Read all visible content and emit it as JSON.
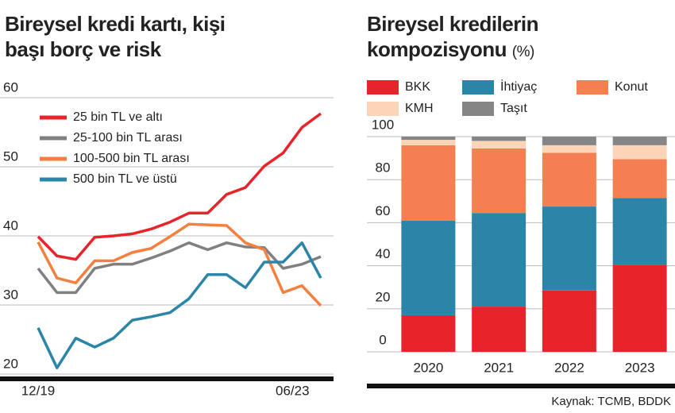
{
  "chart_data": [
    {
      "type": "line",
      "title": "Bireysel kredi kartı, kişi başı borç ve risk",
      "categories": [
        "12/19",
        null,
        null,
        null,
        null,
        null,
        null,
        null,
        null,
        null,
        null,
        null,
        null,
        null,
        "06/23",
        null
      ],
      "ylim": [
        20,
        60
      ],
      "yticks": [
        20,
        30,
        40,
        50,
        60
      ],
      "grid": true,
      "legend": "upper left",
      "series": [
        {
          "name": "25 bin TL ve altı",
          "color": "#e8242a",
          "values": [
            39.9,
            37.1,
            36.6,
            39.8,
            40,
            40.3,
            41,
            42,
            43.3,
            43.3,
            46,
            47,
            50.1,
            52,
            55.7,
            57.7
          ]
        },
        {
          "name": "25-100 bin TL arası",
          "color": "#808080",
          "values": [
            35.3,
            31.8,
            31.8,
            35.3,
            35.9,
            35.9,
            36.8,
            37.8,
            39,
            38,
            39,
            38.4,
            38.3,
            35.3,
            35.9,
            37
          ]
        },
        {
          "name": "100-500 bin TL arası",
          "color": "#f47f3f",
          "values": [
            39.1,
            33.9,
            33.2,
            36.4,
            36.4,
            37.6,
            38.2,
            39.9,
            41.7,
            41.6,
            41.5,
            39,
            38,
            31.8,
            32.8,
            29.9
          ]
        },
        {
          "name": "500 bin TL ve üstü",
          "color": "#2b85a8",
          "values": [
            26.7,
            20.9,
            25.2,
            23.9,
            25.2,
            27.8,
            28.3,
            28.9,
            30.9,
            34.4,
            34.4,
            32.5,
            36.2,
            36.2,
            39,
            33.9
          ]
        }
      ]
    },
    {
      "type": "stacked_bar",
      "title": "Bireysel kredilerin kompozisyonu",
      "unit": "(%)",
      "categories": [
        "2020",
        "2021",
        "2022",
        "2023"
      ],
      "ylim": [
        0,
        100
      ],
      "yticks": [
        0,
        20,
        40,
        60,
        80,
        100
      ],
      "grid": true,
      "series": [
        {
          "name": "BKK",
          "color": "#e8242a",
          "values": [
            17,
            21,
            28.5,
            40.5
          ]
        },
        {
          "name": "İhtiyaç",
          "color": "#2b85a8",
          "values": [
            44,
            43.5,
            39,
            31
          ]
        },
        {
          "name": "Konut",
          "color": "#f47f50",
          "values": [
            35,
            30,
            25,
            18
          ]
        },
        {
          "name": "KMH",
          "color": "#fcd4b8",
          "values": [
            2.5,
            3.5,
            3.5,
            6.5
          ]
        },
        {
          "name": "Taşıt",
          "color": "#858585",
          "values": [
            1.5,
            2,
            4,
            4
          ]
        }
      ],
      "source": "Kaynak: TCMB, BDDK"
    }
  ]
}
